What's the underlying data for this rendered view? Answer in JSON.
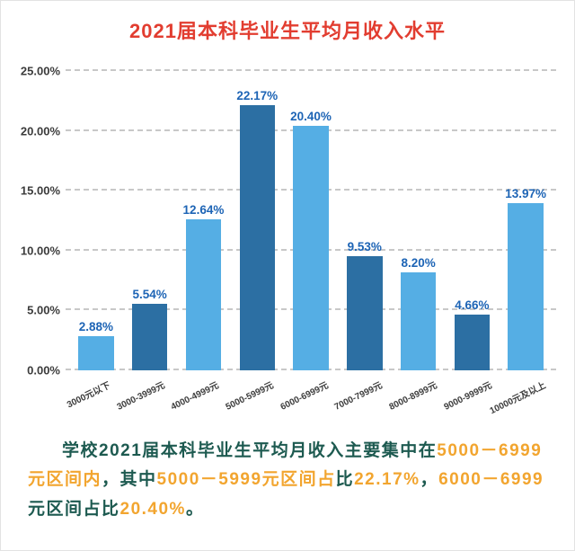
{
  "title": "2021届本科毕业生平均月收入水平",
  "chart_data": {
    "type": "bar",
    "title": "2021届本科毕业生平均月收入水平",
    "categories": [
      "3000元以下",
      "3000-3999元",
      "4000-4999元",
      "5000-5999元",
      "6000-6999元",
      "7000-7999元",
      "8000-8999元",
      "9000-9999元",
      "10000元及以上"
    ],
    "values": [
      2.88,
      5.54,
      12.64,
      22.17,
      20.4,
      9.53,
      8.2,
      4.66,
      13.97
    ],
    "value_labels": [
      "2.88%",
      "5.54%",
      "12.64%",
      "22.17%",
      "20.40%",
      "9.53%",
      "8.20%",
      "4.66%",
      "13.97%"
    ],
    "y_ticks": [
      "0.00%",
      "5.00%",
      "10.00%",
      "15.00%",
      "20.00%",
      "25.00%"
    ],
    "ylim": [
      0,
      25
    ],
    "xlabel": "",
    "ylabel": "",
    "grid": "dashed-horizontal",
    "legend": "none",
    "colors": {
      "bar_light": "#55aee4",
      "bar_dark": "#2c6fa3",
      "value_label": "#1d64b5",
      "title": "#e23d30",
      "axis_text": "#3b3b3b",
      "gridline": "#c8c8c8"
    }
  },
  "summary": {
    "colors": {
      "dark": "#1d5a50",
      "orange": "#f2a52f"
    },
    "segments": [
      {
        "text": "学校2021届本科毕业生平均月收入主要集中在",
        "color": "dark"
      },
      {
        "text": "5000－6999元区间内",
        "color": "orange"
      },
      {
        "text": "，其中",
        "color": "dark"
      },
      {
        "text": "5000－5999元区间占",
        "color": "orange"
      },
      {
        "text": "比",
        "color": "dark"
      },
      {
        "text": "22.17%",
        "color": "orange"
      },
      {
        "text": "，",
        "color": "dark"
      },
      {
        "text": "6000－6999",
        "color": "orange"
      },
      {
        "text": "元区间占比",
        "color": "dark"
      },
      {
        "text": "20.40%",
        "color": "orange"
      },
      {
        "text": "。",
        "color": "dark"
      }
    ]
  }
}
